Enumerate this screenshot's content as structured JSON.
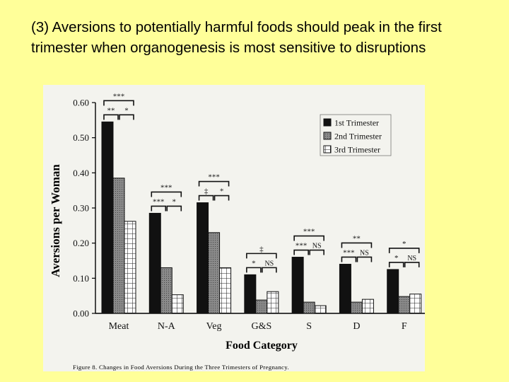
{
  "slide": {
    "title": "(3) Aversions to potentially harmful foods should peak in the first trimester when organogenesis is most sensitive to disruptions"
  },
  "colors": {
    "background": "#ffff99",
    "first_trimester": "#111111",
    "second_trimester": "#7a7a7a",
    "third_trimester": "#ffffff"
  },
  "chart_data": {
    "type": "bar",
    "title": "",
    "xlabel": "Food Category",
    "ylabel": "Aversions per Woman",
    "ylim": [
      0,
      0.6
    ],
    "yticks": [
      "0.00",
      "0.10",
      "0.20",
      "0.30",
      "0.40",
      "0.50",
      "0.60"
    ],
    "categories": [
      "Meat",
      "N-A",
      "Veg",
      "G&S",
      "S",
      "D",
      "F"
    ],
    "series": [
      {
        "name": "1st Trimester",
        "values": [
          0.545,
          0.285,
          0.315,
          0.11,
          0.16,
          0.14,
          0.125
        ]
      },
      {
        "name": "2nd Trimester",
        "values": [
          0.385,
          0.13,
          0.23,
          0.038,
          0.032,
          0.032,
          0.048
        ]
      },
      {
        "name": "3rd Trimester",
        "values": [
          0.262,
          0.053,
          0.13,
          0.062,
          0.022,
          0.04,
          0.055
        ]
      }
    ],
    "legend_position": "top-right",
    "grid": false,
    "significance": [
      {
        "category": "Meat",
        "overall": "***",
        "first_vs_second": "**",
        "second_vs_third": "*"
      },
      {
        "category": "N-A",
        "overall": "***",
        "first_vs_second": "***",
        "second_vs_third": "*"
      },
      {
        "category": "Veg",
        "overall": "***",
        "first_vs_second": "‡",
        "second_vs_third": "*"
      },
      {
        "category": "G&S",
        "overall": "‡",
        "first_vs_second": "*",
        "second_vs_third": "NS"
      },
      {
        "category": "S",
        "overall": "***",
        "first_vs_second": "***",
        "second_vs_third": "NS"
      },
      {
        "category": "D",
        "overall": "**",
        "first_vs_second": "***",
        "second_vs_third": "NS"
      },
      {
        "category": "F",
        "overall": "*",
        "first_vs_second": "*",
        "second_vs_third": "NS"
      }
    ],
    "caption": "Figure 8.  Changes in Food Aversions During the Three Trimesters of Pregnancy."
  }
}
